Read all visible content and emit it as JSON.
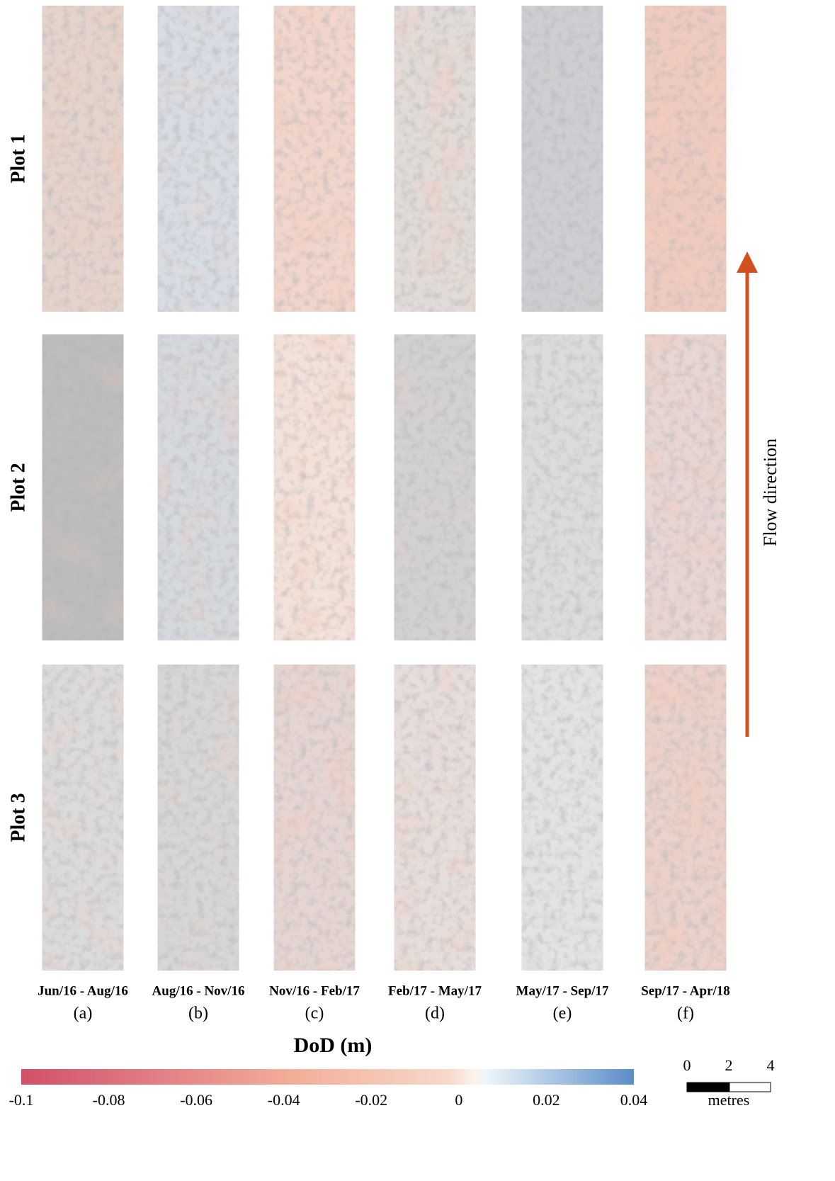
{
  "row_labels": [
    "Plot 1",
    "Plot 2",
    "Plot 3"
  ],
  "columns": [
    {
      "period": "Jun/16 - Aug/16",
      "letter": "(a)"
    },
    {
      "period": "Aug/16 - Nov/16",
      "letter": "(b)"
    },
    {
      "period": "Nov/16 - Feb/17",
      "letter": "(c)"
    },
    {
      "period": "Feb/17 - May/17",
      "letter": "(d)"
    },
    {
      "period": "May/17 - Sep/17",
      "letter": "(e)"
    },
    {
      "period": "Sep/17 - Apr/18",
      "letter": "(f)"
    }
  ],
  "colorbar": {
    "title": "DoD (m)",
    "range": [
      -0.1,
      0.04
    ],
    "ticks": [
      -0.1,
      -0.08,
      -0.06,
      -0.04,
      -0.02,
      0,
      0.02,
      0.04
    ]
  },
  "scale_bar": {
    "ticks": [
      0,
      2,
      4
    ],
    "unit": "metres"
  },
  "flow_label": "Flow direction"
}
